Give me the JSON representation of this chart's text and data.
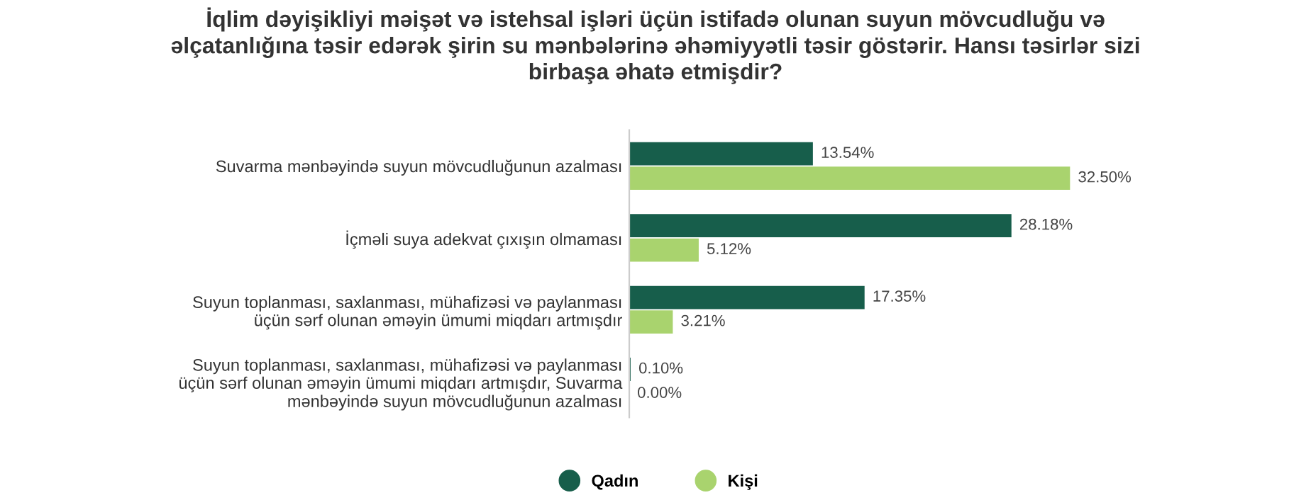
{
  "chart_data": {
    "type": "bar",
    "orientation": "horizontal",
    "title": "İqlim dəyişikliyi məişət və istehsal işləri üçün istifadə olunan suyun mövcudluğu və\nəlçatanlığına təsir edərək şirin su mənbələrinə əhəmiyyətli təsir göstərir. Hansı təsirlər sizi\nbirbaşa əhatə etmişdir?",
    "categories": [
      "Suvarma mənbəyində suyun mövcudluğunun azalması",
      "İçməli suya adekvat çıxışın olmaması",
      "Suyun toplanması, saxlanması, mühafizəsi və paylanması\nüçün sərf olunan əməyin ümumi miqdarı artmışdır",
      "Suyun toplanması, saxlanması, mühafizəsi və paylanması\nüçün sərf olunan əməyin ümumi miqdarı artmışdır, Suvarma\nmənbəyində suyun mövcudluğunun azalması"
    ],
    "series": [
      {
        "name": "Qadın",
        "color": "#175e4b",
        "values": [
          13.54,
          28.18,
          17.35,
          0.1
        ],
        "value_labels": [
          "13.54%",
          "28.18%",
          "17.35%",
          "0.10%"
        ]
      },
      {
        "name": "Kişi",
        "color": "#a9d36e",
        "values": [
          32.5,
          5.12,
          3.21,
          0.0
        ],
        "value_labels": [
          "32.50%",
          "5.12%",
          "3.21%",
          "0.00%"
        ]
      }
    ],
    "tick_labels": "y",
    "grid": false,
    "legend": "bottom"
  }
}
